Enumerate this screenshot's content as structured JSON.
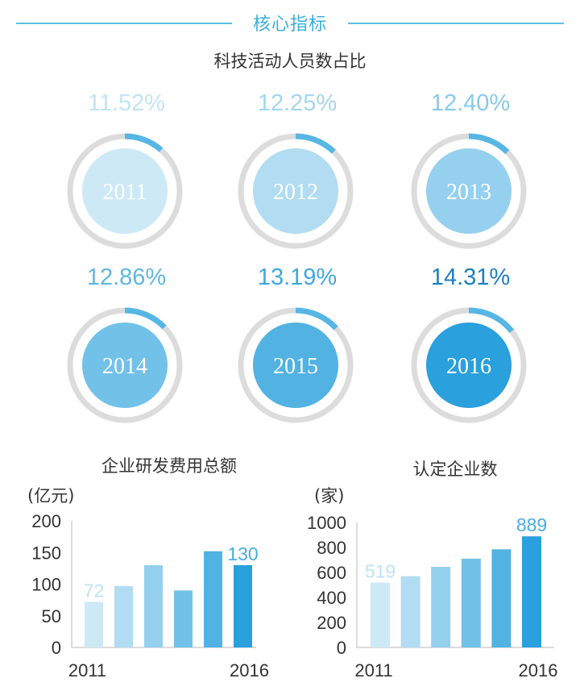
{
  "header": {
    "title": "核心指标"
  },
  "chart_data": [
    {
      "type": "donut",
      "title": "科技活动人员数占比",
      "categories": [
        "2011",
        "2012",
        "2013",
        "2014",
        "2015",
        "2016"
      ],
      "values": [
        11.52,
        12.25,
        12.4,
        12.86,
        13.19,
        14.31
      ],
      "labels": [
        "11.52%",
        "12.25%",
        "12.40%",
        "12.86%",
        "13.19%",
        "14.31%"
      ],
      "colors": [
        "#cde9f6",
        "#b1dcf1",
        "#95d0ee",
        "#72c1e8",
        "#52b2e2",
        "#2aa0dc"
      ],
      "label_colors": [
        "#c3e4f3",
        "#a4d6ee",
        "#86cbea",
        "#5eb8e3",
        "#40a8dd",
        "#1c7fc0"
      ],
      "ring_color": "#dcdcdc",
      "arc_color": "#56b6e4"
    },
    {
      "type": "bar",
      "title": "企业研发费用总额",
      "unit": "(亿元)",
      "categories": [
        "2011",
        "2012",
        "2013",
        "2014",
        "2015",
        "2016"
      ],
      "values": [
        72,
        97,
        130,
        90,
        152,
        130
      ],
      "x_tick_labels": [
        "2011",
        "",
        "",
        "",
        "",
        "2016"
      ],
      "data_labels": [
        "72",
        "",
        "",
        "",
        "",
        "130"
      ],
      "ylim": [
        0,
        200
      ],
      "yticks": [
        0,
        50,
        100,
        150,
        200
      ],
      "colors": [
        "#cde9f6",
        "#b1dcf1",
        "#95d0ee",
        "#72c1e8",
        "#52b2e2",
        "#2aa0dc"
      ]
    },
    {
      "type": "bar",
      "title": "认定企业数",
      "unit": "(家)",
      "categories": [
        "2011",
        "2012",
        "2013",
        "2014",
        "2015",
        "2016"
      ],
      "values": [
        519,
        570,
        645,
        710,
        785,
        889
      ],
      "x_tick_labels": [
        "2011",
        "",
        "",
        "",
        "",
        "2016"
      ],
      "data_labels": [
        "519",
        "",
        "",
        "",
        "",
        "889"
      ],
      "ylim": [
        0,
        1000
      ],
      "yticks": [
        0,
        200,
        400,
        600,
        800,
        1000
      ],
      "colors": [
        "#cde9f6",
        "#b1dcf1",
        "#95d0ee",
        "#72c1e8",
        "#52b2e2",
        "#2aa0dc"
      ]
    }
  ]
}
